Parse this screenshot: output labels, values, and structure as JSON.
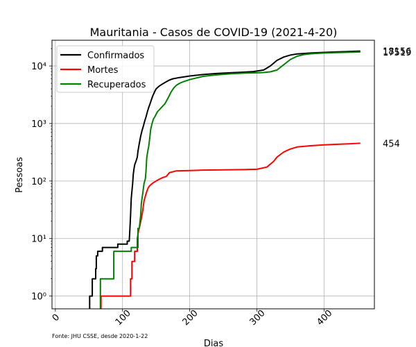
{
  "chart_data": {
    "type": "line",
    "title": "Mauritania - Casos de COVID-19 (2021-4-20)",
    "xlabel": "Dias",
    "ylabel": "Pessoas",
    "yscale": "log",
    "xlim": [
      -5,
      475
    ],
    "ylim": [
      0.6,
      28000
    ],
    "xticks": [
      0,
      100,
      200,
      300,
      400
    ],
    "xtick_labels": [
      "0",
      "100",
      "200",
      "300",
      "400"
    ],
    "yticks": [
      1,
      10,
      100,
      1000,
      10000
    ],
    "ytick_labels": [
      "10⁰",
      "10¹",
      "10²",
      "10³",
      "10⁴"
    ],
    "grid": true,
    "legend_position": "top-left",
    "source": "Fonte: JHU CSSE, desde 2020-1-22",
    "series": [
      {
        "name": "Confirmados",
        "color": "#000000",
        "end_label": "18156",
        "points": [
          [
            51,
            0.6
          ],
          [
            51,
            1
          ],
          [
            55,
            1
          ],
          [
            55,
            2
          ],
          [
            60,
            2
          ],
          [
            60,
            3
          ],
          [
            61,
            3
          ],
          [
            61,
            5
          ],
          [
            63,
            5
          ],
          [
            63,
            6
          ],
          [
            70,
            6
          ],
          [
            70,
            7
          ],
          [
            93,
            7
          ],
          [
            93,
            8
          ],
          [
            107,
            8
          ],
          [
            107,
            9
          ],
          [
            110,
            9
          ],
          [
            111,
            15
          ],
          [
            112,
            25
          ],
          [
            113,
            50
          ],
          [
            115,
            90
          ],
          [
            116,
            130
          ],
          [
            117,
            160
          ],
          [
            118,
            190
          ],
          [
            120,
            220
          ],
          [
            122,
            260
          ],
          [
            123,
            330
          ],
          [
            125,
            450
          ],
          [
            127,
            600
          ],
          [
            129,
            750
          ],
          [
            131,
            900
          ],
          [
            133,
            1100
          ],
          [
            135,
            1300
          ],
          [
            137,
            1600
          ],
          [
            139,
            1900
          ],
          [
            141,
            2200
          ],
          [
            143,
            2600
          ],
          [
            145,
            3000
          ],
          [
            148,
            3600
          ],
          [
            150,
            4000
          ],
          [
            155,
            4500
          ],
          [
            160,
            4900
          ],
          [
            165,
            5300
          ],
          [
            170,
            5700
          ],
          [
            175,
            6000
          ],
          [
            185,
            6300
          ],
          [
            200,
            6700
          ],
          [
            220,
            7100
          ],
          [
            240,
            7400
          ],
          [
            260,
            7600
          ],
          [
            280,
            7800
          ],
          [
            295,
            8000
          ],
          [
            300,
            8150
          ],
          [
            310,
            8500
          ],
          [
            320,
            10000
          ],
          [
            330,
            12500
          ],
          [
            340,
            14300
          ],
          [
            350,
            15500
          ],
          [
            360,
            16200
          ],
          [
            380,
            16800
          ],
          [
            400,
            17200
          ],
          [
            420,
            17600
          ],
          [
            440,
            17900
          ],
          [
            454,
            18156
          ]
        ]
      },
      {
        "name": "Mortes",
        "color": "#ff0000",
        "end_label": "454",
        "points": [
          [
            68,
            0.6
          ],
          [
            68,
            1
          ],
          [
            112,
            1
          ],
          [
            112,
            2
          ],
          [
            114,
            2
          ],
          [
            114,
            4
          ],
          [
            118,
            4
          ],
          [
            118,
            6
          ],
          [
            122,
            6
          ],
          [
            122,
            10
          ],
          [
            124,
            14
          ],
          [
            126,
            17
          ],
          [
            128,
            22
          ],
          [
            130,
            30
          ],
          [
            132,
            45
          ],
          [
            134,
            55
          ],
          [
            136,
            65
          ],
          [
            138,
            75
          ],
          [
            140,
            82
          ],
          [
            145,
            92
          ],
          [
            150,
            100
          ],
          [
            155,
            108
          ],
          [
            160,
            115
          ],
          [
            165,
            120
          ],
          [
            170,
            140
          ],
          [
            175,
            145
          ],
          [
            180,
            150
          ],
          [
            200,
            152
          ],
          [
            220,
            155
          ],
          [
            250,
            156
          ],
          [
            280,
            158
          ],
          [
            300,
            160
          ],
          [
            315,
            175
          ],
          [
            325,
            220
          ],
          [
            330,
            260
          ],
          [
            340,
            320
          ],
          [
            350,
            360
          ],
          [
            360,
            390
          ],
          [
            380,
            410
          ],
          [
            400,
            425
          ],
          [
            420,
            435
          ],
          [
            440,
            445
          ],
          [
            454,
            454
          ]
        ]
      },
      {
        "name": "Recuperados",
        "color": "#008000",
        "end_label": "17519",
        "points": [
          [
            67,
            0.6
          ],
          [
            67,
            2
          ],
          [
            87,
            2
          ],
          [
            87,
            6
          ],
          [
            113,
            6
          ],
          [
            113,
            7
          ],
          [
            123,
            7
          ],
          [
            123,
            15
          ],
          [
            125,
            15
          ],
          [
            126,
            20
          ],
          [
            127,
            25
          ],
          [
            128,
            40
          ],
          [
            130,
            60
          ],
          [
            132,
            90
          ],
          [
            134,
            110
          ],
          [
            135,
            150
          ],
          [
            136,
            250
          ],
          [
            137,
            300
          ],
          [
            138,
            350
          ],
          [
            139,
            400
          ],
          [
            140,
            500
          ],
          [
            142,
            800
          ],
          [
            144,
            1000
          ],
          [
            146,
            1200
          ],
          [
            148,
            1300
          ],
          [
            152,
            1600
          ],
          [
            158,
            1900
          ],
          [
            163,
            2200
          ],
          [
            168,
            2800
          ],
          [
            172,
            3500
          ],
          [
            176,
            4100
          ],
          [
            180,
            4600
          ],
          [
            185,
            5000
          ],
          [
            190,
            5300
          ],
          [
            200,
            5800
          ],
          [
            210,
            6200
          ],
          [
            220,
            6600
          ],
          [
            240,
            7000
          ],
          [
            260,
            7300
          ],
          [
            280,
            7500
          ],
          [
            300,
            7600
          ],
          [
            310,
            7700
          ],
          [
            320,
            7900
          ],
          [
            330,
            8500
          ],
          [
            340,
            10500
          ],
          [
            350,
            13000
          ],
          [
            360,
            14800
          ],
          [
            370,
            15800
          ],
          [
            380,
            16300
          ],
          [
            400,
            16800
          ],
          [
            420,
            17100
          ],
          [
            440,
            17300
          ],
          [
            454,
            17519
          ]
        ]
      }
    ]
  }
}
